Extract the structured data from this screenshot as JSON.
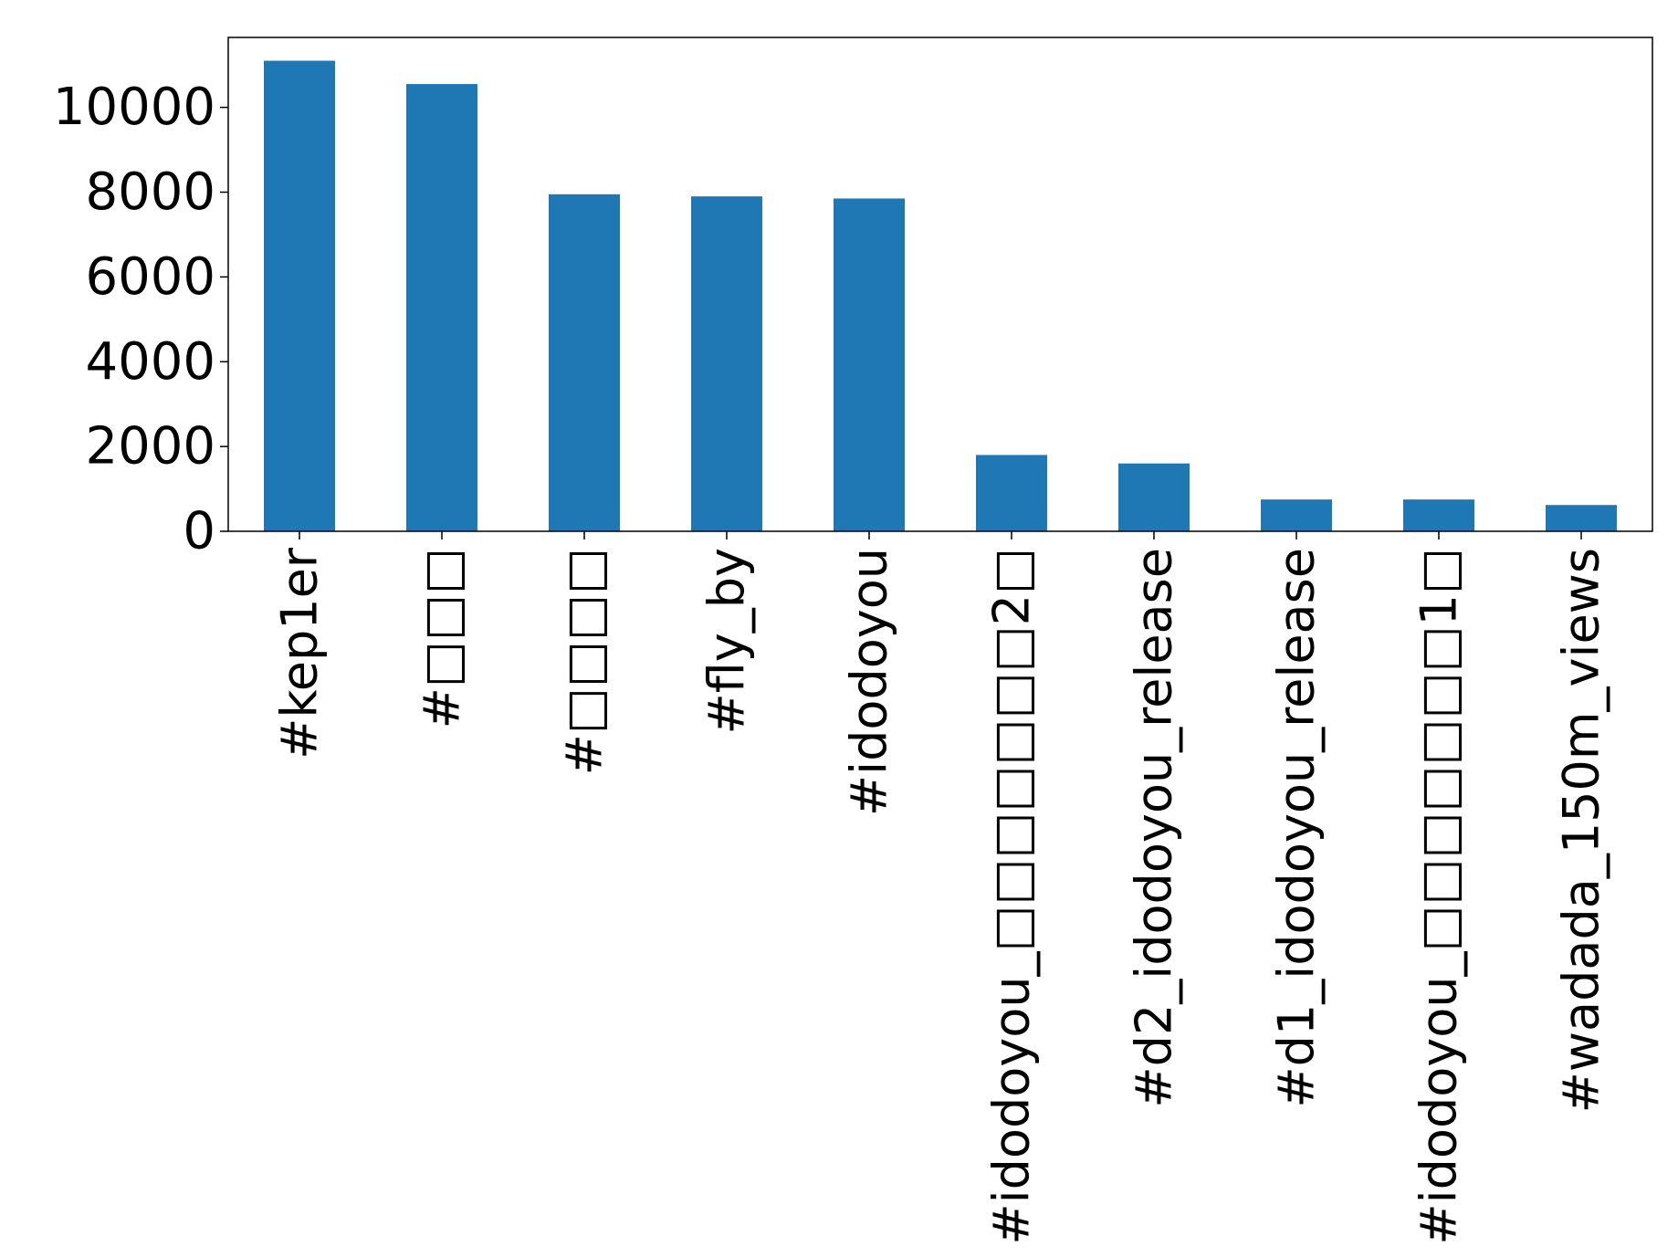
{
  "chart_data": {
    "type": "bar",
    "title": "",
    "xlabel": "",
    "ylabel": "",
    "categories": [
      "#kep1er",
      "#□□□",
      "#□□□□",
      "#fly_by",
      "#idodoyou",
      "#idodoyou_□□□□□□□2□",
      "#d2_idodoyou_release",
      "#d1_idodoyou_release",
      "#idodoyou_□□□□□□□1□",
      "#wadada_150m_views"
    ],
    "values": [
      11100,
      10550,
      7950,
      7900,
      7850,
      1800,
      1600,
      750,
      750,
      620
    ],
    "ylim": [
      0,
      11650
    ],
    "yticks": [
      0,
      2000,
      4000,
      6000,
      8000,
      10000
    ],
    "grid": false,
    "legend": "none",
    "colors": {
      "bar": "#1f77b4",
      "axis": "#000000",
      "background": "#ffffff"
    }
  }
}
